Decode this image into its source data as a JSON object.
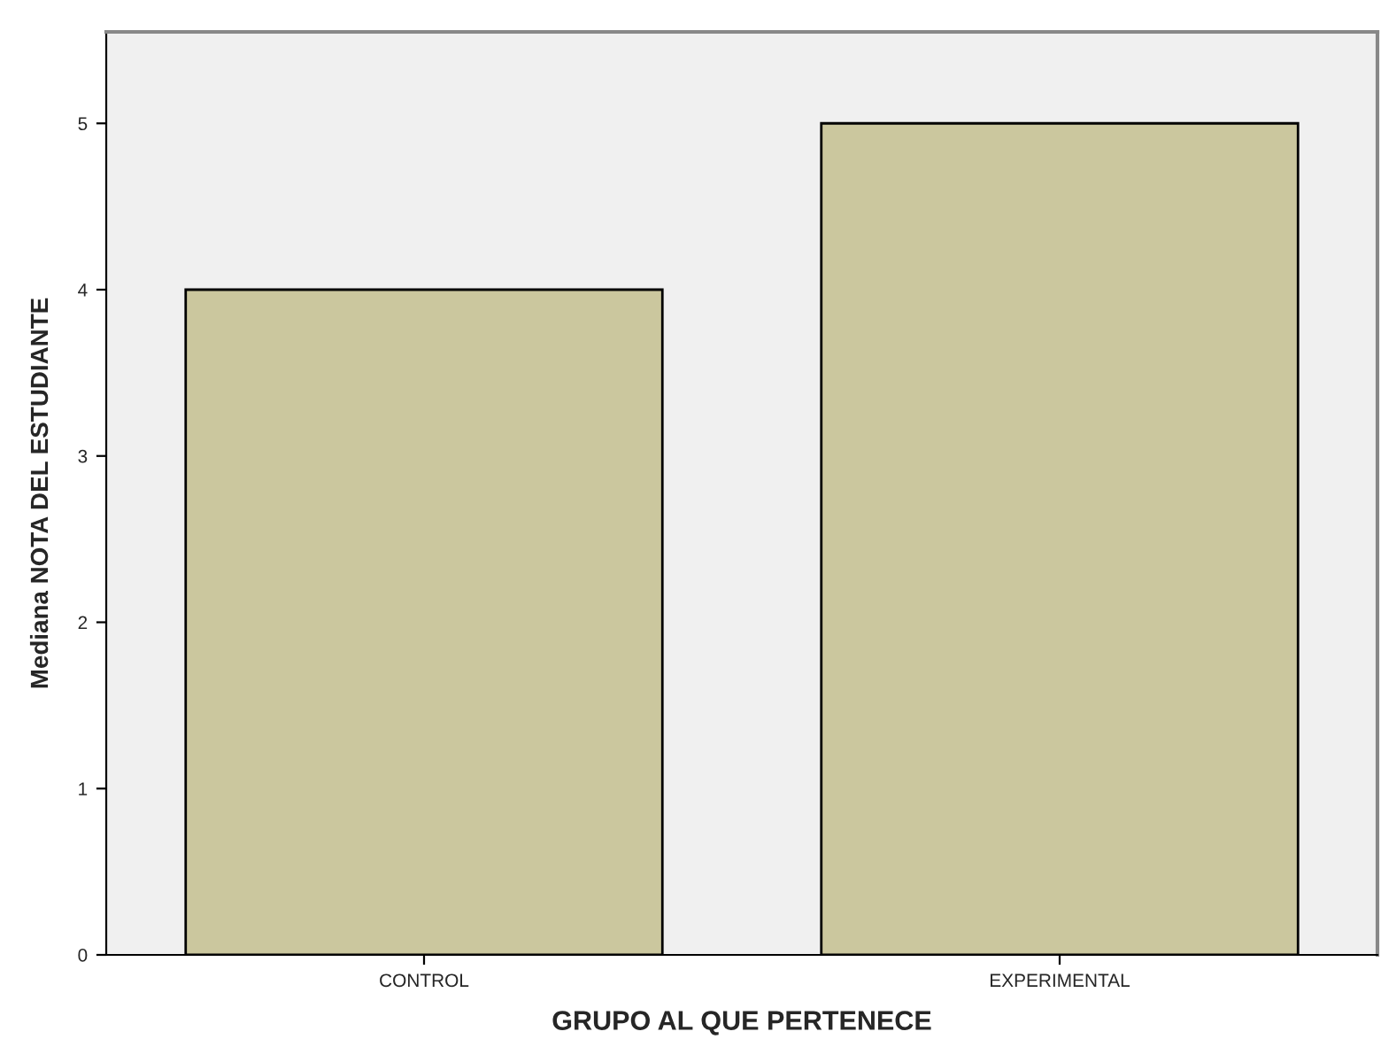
{
  "chart_data": {
    "type": "bar",
    "categories": [
      "CONTROL",
      "EXPERIMENTAL"
    ],
    "values": [
      4,
      5
    ],
    "color": "#d3cd96",
    "xlabel": "GRUPO AL QUE PERTENECE",
    "ylabel": "Mediana NOTA DEL ESTUDIANTE",
    "ylim": [
      0,
      5.55
    ],
    "yticks": [
      0,
      1,
      2,
      3,
      4,
      5
    ],
    "grid": false
  }
}
